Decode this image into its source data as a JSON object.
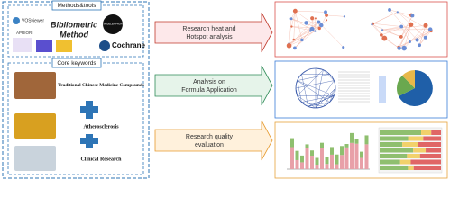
{
  "methods": {
    "title": "Methods&tools",
    "tools": [
      "VOSviewer",
      "Bibliometric",
      "Method",
      "IBM SPSS MODELER PROFESSIONAL",
      "APRIORI",
      "Cochrane"
    ]
  },
  "keywords": {
    "title": "Core keywords",
    "items": [
      "Traditional Chinese Medicine Compounds",
      "Atherosclerosis",
      "Clinical Research"
    ]
  },
  "steps": [
    {
      "lines": [
        "Research heat and",
        "Hotspot analysis"
      ]
    },
    {
      "lines": [
        "Analysis on",
        "Formula Application"
      ]
    },
    {
      "lines": [
        "Research quality",
        "evaluation"
      ]
    }
  ]
}
